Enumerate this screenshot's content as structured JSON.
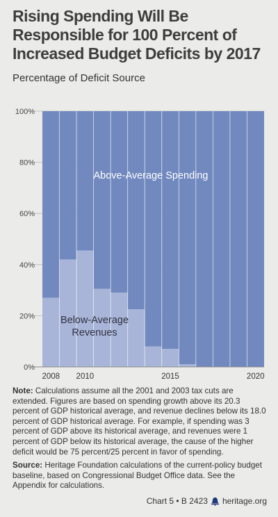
{
  "title": "Rising Spending Will Be Responsible for 100 Percent of Increased Budget Deficits by 2017",
  "subtitle": "Percentage of Deficit Source",
  "chart_data": {
    "type": "bar",
    "stacked": true,
    "categories": [
      "2008",
      "2009",
      "2010",
      "2011",
      "2012",
      "2013",
      "2014",
      "2015",
      "2016",
      "2017",
      "2018",
      "2019",
      "2020"
    ],
    "series": [
      {
        "name": "Below-Average Revenues",
        "color": "#a9b5d8",
        "values": [
          27,
          42,
          45.5,
          30.5,
          29,
          22.5,
          8,
          7,
          1,
          0,
          0,
          0,
          0
        ]
      },
      {
        "name": "Above-Average Spending",
        "color": "#7189bf",
        "values": [
          73,
          58,
          54.5,
          69.5,
          71,
          77.5,
          92,
          93,
          99,
          100,
          100,
          100,
          100
        ]
      }
    ],
    "y_ticks": [
      "0%",
      "20%",
      "40%",
      "60%",
      "80%",
      "100%"
    ],
    "y_tick_values": [
      0,
      20,
      40,
      60,
      80,
      100
    ],
    "x_tick_labels": [
      {
        "category": "2008",
        "label": "2008"
      },
      {
        "category": "2010",
        "label": "2010"
      },
      {
        "category": "2015",
        "label": "2015"
      },
      {
        "category": "2020",
        "label": "2020"
      }
    ],
    "ylim": [
      0,
      100
    ],
    "grid": true,
    "annotations": {
      "spending": "Above-Average Spending",
      "revenues_line1": "Below-Average",
      "revenues_line2": "Revenues"
    }
  },
  "note": {
    "label": "Note:",
    "text": "Calculations assume all the 2001 and 2003 tax cuts are extended. Figures are based on spending growth above its 20.3 percent of GDP historical average, and revenue declines below its 18.0 percent of GDP historical average. For example, if spending was 3 percent of GDP above its historical average, and revenues were 1 percent of GDP below its historical average, the cause of the higher deficit would be 75 percent/25 percent in favor of spending."
  },
  "source": {
    "label": "Source:",
    "text": "Heritage Foundation calculations of the current-policy budget baseline, based on Congressional Budget Office data. See the Appendix for calculations."
  },
  "footer": {
    "chart_ref": "Chart 5 • B 2423",
    "site": "heritage.org",
    "icon": "liberty-bell-icon"
  }
}
